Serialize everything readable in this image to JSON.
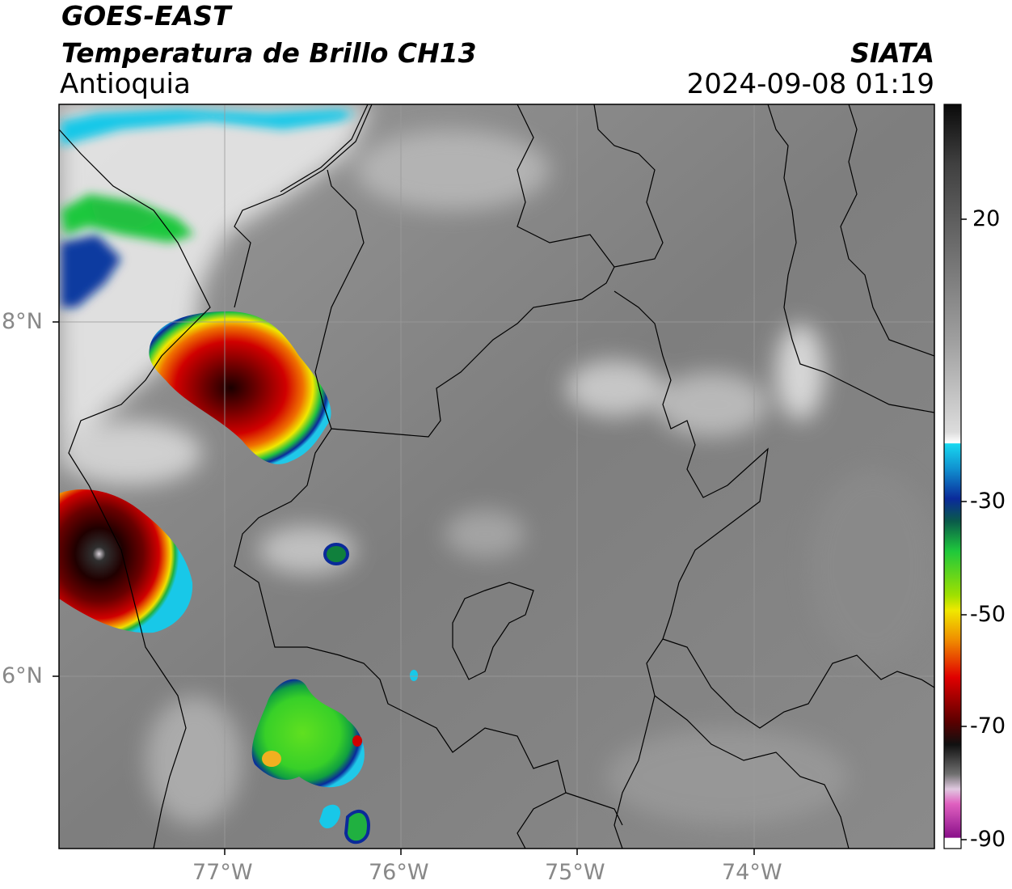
{
  "header": {
    "satellite": "GOES-EAST",
    "product": "Temperatura de Brillo CH13",
    "region": "Antioquia",
    "org": "SIATA",
    "datetime": "2024-09-08 01:19"
  },
  "axes": {
    "lat_ticks": [
      "8°N",
      "6°N"
    ],
    "lon_ticks": [
      "77°W",
      "76°W",
      "75°W",
      "74°W"
    ]
  },
  "colorbar": {
    "ticks": [
      "20",
      "-30",
      "-50",
      "-70",
      "-90"
    ],
    "colors": {
      "warm_top": "#0a0a0a",
      "mid_gray": "#808080",
      "light": "#ffffff",
      "cyan": "#18c8e8",
      "blue": "#0a2a9a",
      "green": "#1ec83c",
      "yellow": "#f0e800",
      "orange": "#f08c00",
      "red": "#d80000",
      "darkred": "#5a0000",
      "magenta": "#e060c0",
      "purple": "#8a108a"
    }
  }
}
